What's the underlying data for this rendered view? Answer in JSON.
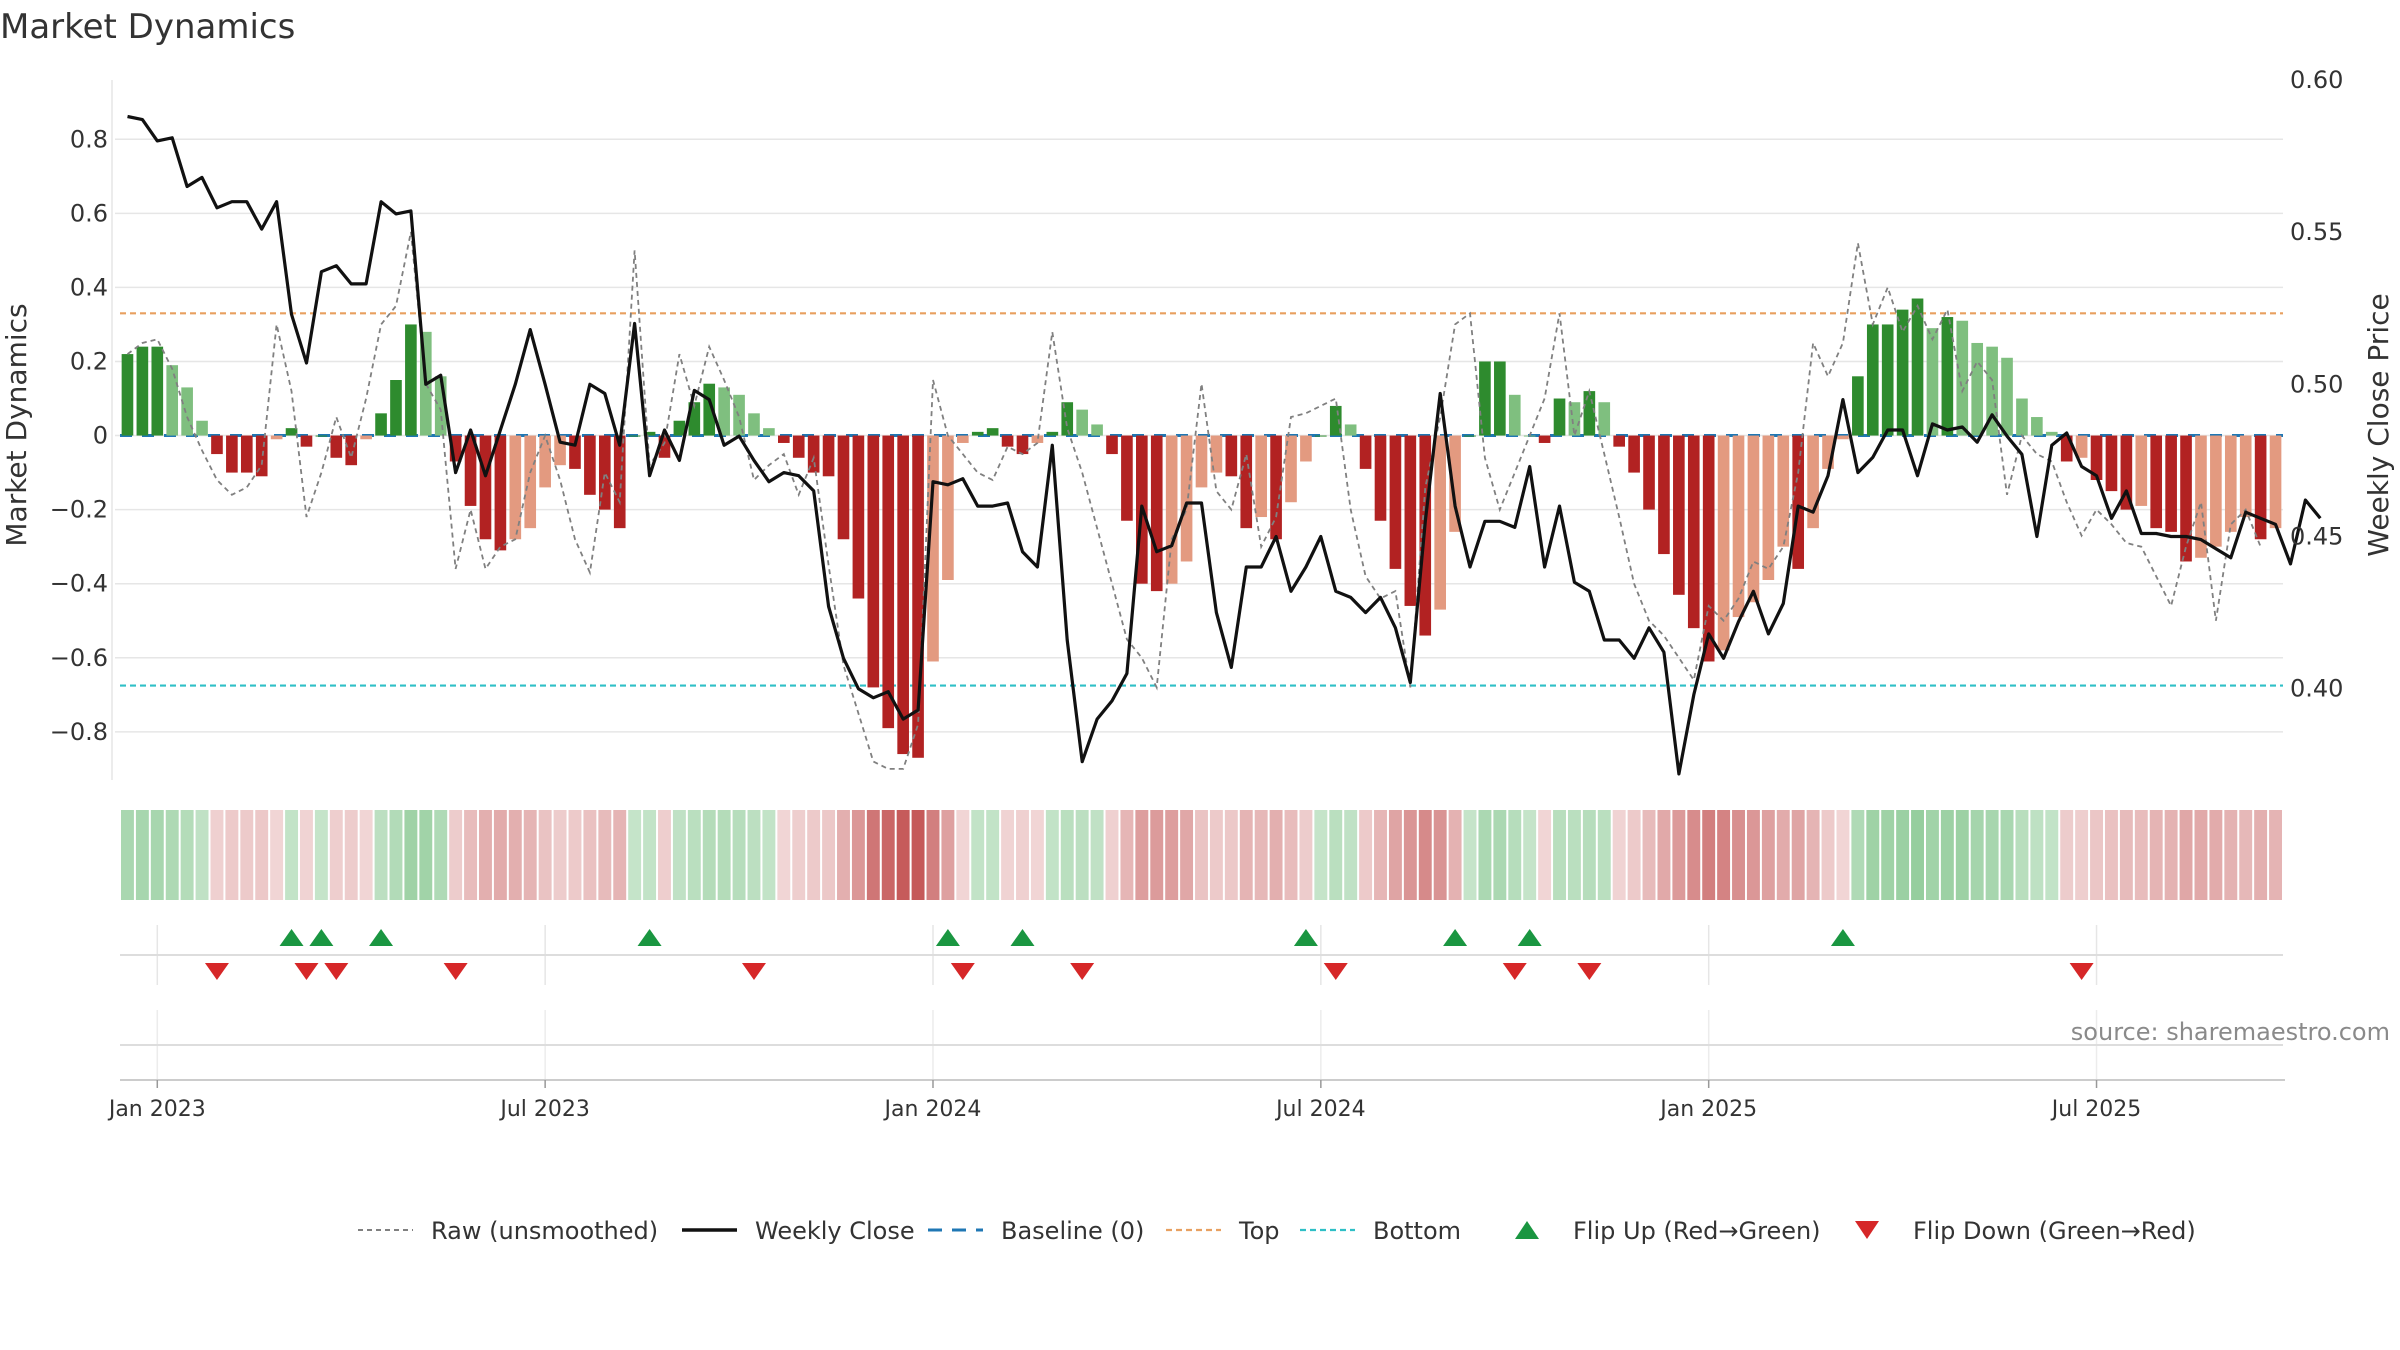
{
  "chart_data": {
    "type": "bar+line",
    "title": "Market Dynamics",
    "ylabel_left": "Market Dynamics",
    "ylabel_right": "Weekly Close Price",
    "ylim_left": [
      -0.93,
      0.96
    ],
    "ylim_right": [
      0.37,
      0.6
    ],
    "left_ticks": [
      0.8,
      0.6,
      0.4,
      0.2,
      0,
      -0.2,
      -0.4,
      -0.6,
      -0.8
    ],
    "left_tick_labels": [
      "0.8",
      "0.6",
      "0.4",
      "0.2",
      "0",
      "−0.2",
      "−0.4",
      "−0.6",
      "−0.8"
    ],
    "right_ticks": [
      0.6,
      0.55,
      0.5,
      0.45,
      0.4
    ],
    "right_tick_labels": [
      "0.60",
      "0.55",
      "0.50",
      "0.45",
      "0.40"
    ],
    "top_level": 0.33,
    "bottom_level": -0.675,
    "baseline": 0,
    "x_ticks": [
      {
        "week": 2,
        "label": "Jan 2023"
      },
      {
        "week": 28,
        "label": "Jul 2023"
      },
      {
        "week": 54,
        "label": "Jan 2024"
      },
      {
        "week": 80,
        "label": "Jul 2024"
      },
      {
        "week": 106,
        "label": "Jan 2025"
      },
      {
        "week": 132,
        "label": "Jul 2025"
      }
    ],
    "weeks": 145,
    "smoothed": [
      0.22,
      0.24,
      0.24,
      0.19,
      0.13,
      0.04,
      -0.05,
      -0.1,
      -0.1,
      -0.11,
      -0.01,
      0.02,
      -0.03,
      0.0,
      -0.06,
      -0.08,
      -0.01,
      0.06,
      0.15,
      0.3,
      0.28,
      0.16,
      -0.07,
      -0.19,
      -0.28,
      -0.31,
      -0.28,
      -0.25,
      -0.14,
      -0.08,
      -0.09,
      -0.16,
      -0.2,
      -0.25,
      0.0,
      0.01,
      -0.06,
      0.04,
      0.09,
      0.14,
      0.13,
      0.11,
      0.06,
      0.02,
      -0.02,
      -0.06,
      -0.1,
      -0.11,
      -0.28,
      -0.44,
      -0.68,
      -0.79,
      -0.86,
      -0.87,
      -0.61,
      -0.39,
      -0.02,
      0.01,
      0.02,
      -0.03,
      -0.05,
      -0.02,
      0.01,
      0.09,
      0.07,
      0.03,
      -0.05,
      -0.23,
      -0.4,
      -0.42,
      -0.4,
      -0.34,
      -0.14,
      -0.1,
      -0.11,
      -0.25,
      -0.22,
      -0.28,
      -0.18,
      -0.07,
      0.0,
      0.08,
      0.03,
      -0.09,
      -0.23,
      -0.36,
      -0.46,
      -0.54,
      -0.47,
      -0.26,
      0.0,
      0.2,
      0.2,
      0.11,
      0.0,
      -0.02,
      0.1,
      0.09,
      0.12,
      0.09,
      -0.03,
      -0.1,
      -0.2,
      -0.32,
      -0.43,
      -0.52,
      -0.61,
      -0.58,
      -0.49,
      -0.45,
      -0.39,
      -0.3,
      -0.36,
      -0.25,
      -0.09,
      -0.01,
      0.16,
      0.3,
      0.3,
      0.34,
      0.37,
      0.29,
      0.32,
      0.31,
      0.25,
      0.24,
      0.21,
      0.1,
      0.05,
      0.01,
      -0.07,
      -0.06,
      -0.12,
      -0.15,
      -0.2,
      -0.19,
      -0.25,
      -0.26,
      -0.34,
      -0.33,
      -0.3,
      -0.26,
      -0.22,
      -0.28,
      -0.25
    ],
    "raw": [
      0.22,
      0.25,
      0.26,
      0.18,
      0.05,
      -0.04,
      -0.12,
      -0.16,
      -0.14,
      -0.08,
      0.3,
      0.12,
      -0.22,
      -0.1,
      0.05,
      -0.06,
      0.1,
      0.3,
      0.35,
      0.55,
      0.14,
      0.07,
      -0.36,
      -0.2,
      -0.36,
      -0.3,
      -0.28,
      -0.1,
      0.0,
      -0.12,
      -0.28,
      -0.37,
      -0.1,
      -0.18,
      0.5,
      -0.08,
      -0.02,
      0.22,
      0.08,
      0.24,
      0.15,
      0.05,
      -0.12,
      -0.08,
      -0.05,
      -0.16,
      -0.06,
      -0.35,
      -0.62,
      -0.75,
      -0.88,
      -0.9,
      -0.9,
      -0.78,
      0.15,
      0.0,
      -0.05,
      -0.1,
      -0.12,
      -0.03,
      -0.05,
      -0.02,
      0.28,
      0.02,
      -0.1,
      -0.25,
      -0.4,
      -0.55,
      -0.6,
      -0.68,
      -0.28,
      -0.2,
      0.14,
      -0.15,
      -0.2,
      -0.05,
      -0.3,
      -0.22,
      0.05,
      0.06,
      0.08,
      0.1,
      -0.2,
      -0.38,
      -0.44,
      -0.42,
      -0.68,
      -0.14,
      0.05,
      0.3,
      0.33,
      -0.06,
      -0.2,
      -0.1,
      0.0,
      0.1,
      0.33,
      0.0,
      0.12,
      -0.05,
      -0.22,
      -0.4,
      -0.5,
      -0.54,
      -0.6,
      -0.66,
      -0.46,
      -0.5,
      -0.44,
      -0.34,
      -0.36,
      -0.3,
      -0.1,
      0.25,
      0.16,
      0.25,
      0.52,
      0.3,
      0.4,
      0.28,
      0.35,
      0.26,
      0.34,
      0.12,
      0.2,
      0.15,
      -0.16,
      0.0,
      -0.05,
      -0.07,
      -0.18,
      -0.27,
      -0.2,
      -0.24,
      -0.29,
      -0.3,
      -0.38,
      -0.46,
      -0.3,
      -0.18,
      -0.5,
      -0.24,
      -0.2,
      -0.3
    ],
    "weekly_close": [
      0.588,
      0.587,
      0.58,
      0.581,
      0.565,
      0.568,
      0.558,
      0.56,
      0.56,
      0.551,
      0.56,
      0.523,
      0.507,
      0.537,
      0.539,
      0.533,
      0.533,
      0.56,
      0.556,
      0.557,
      0.5,
      0.503,
      0.471,
      0.485,
      0.47,
      0.485,
      0.5,
      0.518,
      0.5,
      0.481,
      0.48,
      0.5,
      0.497,
      0.48,
      0.52,
      0.47,
      0.485,
      0.475,
      0.498,
      0.495,
      0.48,
      0.483,
      0.475,
      0.468,
      0.471,
      0.47,
      0.465,
      0.427,
      0.41,
      0.4,
      0.397,
      0.399,
      0.39,
      0.393,
      0.468,
      0.467,
      0.469,
      0.46,
      0.46,
      0.461,
      0.445,
      0.44,
      0.48,
      0.416,
      0.376,
      0.39,
      0.396,
      0.405,
      0.46,
      0.445,
      0.447,
      0.461,
      0.461,
      0.425,
      0.407,
      0.44,
      0.44,
      0.45,
      0.432,
      0.44,
      0.45,
      0.432,
      0.43,
      0.425,
      0.43,
      0.42,
      0.402,
      0.455,
      0.497,
      0.46,
      0.44,
      0.455,
      0.455,
      0.453,
      0.473,
      0.44,
      0.46,
      0.435,
      0.432,
      0.416,
      0.416,
      0.41,
      0.42,
      0.412,
      0.372,
      0.398,
      0.418,
      0.41,
      0.422,
      0.432,
      0.418,
      0.428,
      0.46,
      0.458,
      0.47,
      0.495,
      0.471,
      0.476,
      0.485,
      0.485,
      0.47,
      0.487,
      0.485,
      0.486,
      0.481,
      0.49,
      0.483,
      0.477,
      0.45,
      0.48,
      0.484,
      0.473,
      0.47,
      0.456,
      0.465,
      0.451,
      0.451,
      0.45,
      0.45,
      0.449,
      0.446,
      0.443,
      0.458,
      0.456,
      0.454,
      0.441,
      0.462,
      0.456
    ],
    "flip_up_weeks": [
      11,
      13,
      17,
      35,
      55,
      60,
      79,
      89,
      94,
      115
    ],
    "flip_down_weeks": [
      6,
      12,
      14,
      22,
      42,
      56,
      64,
      81,
      93,
      98,
      131
    ],
    "colors": {
      "strong_green": "#2e8b2e",
      "light_green": "#7fbf7f",
      "strong_red": "#b22222",
      "light_red": "#e39a80",
      "raw_line": "#808080",
      "weekly_close": "#111111",
      "baseline": "#1f77b4",
      "top": "#e8a060",
      "bottom": "#2fbfc6",
      "flip_up": "#1a9641",
      "flip_down": "#d62728"
    },
    "legend": [
      {
        "key": "raw",
        "label": "Raw (unsmoothed)"
      },
      {
        "key": "close",
        "label": "Weekly Close"
      },
      {
        "key": "baseline",
        "label": "Baseline (0)"
      },
      {
        "key": "top",
        "label": "Top"
      },
      {
        "key": "bottom",
        "label": "Bottom"
      },
      {
        "key": "up",
        "label": "Flip Up (Red→Green)"
      },
      {
        "key": "down",
        "label": "Flip Down (Green→Red)"
      }
    ],
    "source": "source: sharemaestro.com"
  }
}
